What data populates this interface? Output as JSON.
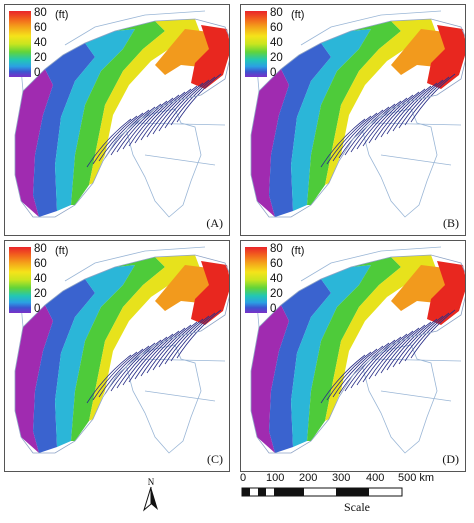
{
  "legend": {
    "ticks": [
      "80",
      "60",
      "40",
      "20",
      "0"
    ],
    "unit": "(ft)"
  },
  "panels": [
    {
      "label": "(A)"
    },
    {
      "label": "(B)"
    },
    {
      "label": "(C)"
    },
    {
      "label": "(D)"
    }
  ],
  "north_arrow": {
    "letter": "N"
  },
  "scale_bar": {
    "labels": [
      "0",
      "100",
      "200",
      "300",
      "400",
      "500 km"
    ],
    "caption": "Scale"
  },
  "colors": {
    "magenta": "#a02bb0",
    "blue": "#3a63cf",
    "cyan": "#2bb6d8",
    "green": "#4ecb3a",
    "yellow": "#e7e21c",
    "orange": "#f29a1d",
    "red": "#e8271f",
    "outline": "#9ab6d6",
    "fault": "#2a2f88"
  }
}
